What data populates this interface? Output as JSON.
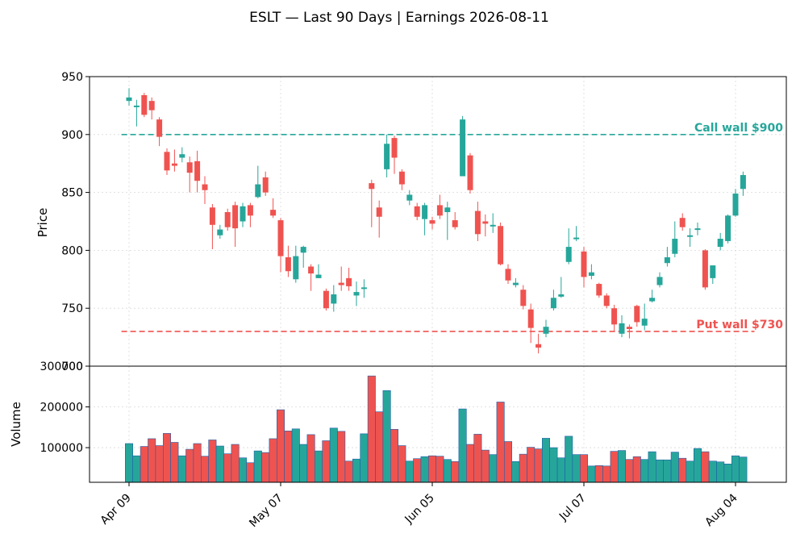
{
  "title": "ESLT — Last 90 Days | Earnings 2026-08-11",
  "colors": {
    "up": "#26a69a",
    "down": "#ef5350",
    "call_wall": "#26a69a",
    "put_wall": "#ef5350",
    "grid": "#d9d9d9",
    "bar_edge": "#1f5fa8"
  },
  "chart_data": [
    {
      "type": "candlestick",
      "ylabel": "Price",
      "ylim": [
        700,
        950
      ],
      "yticks": [
        700,
        750,
        800,
        850,
        900,
        950
      ],
      "grid": true,
      "annotations": [
        {
          "label": "Call wall $900",
          "value": 900
        },
        {
          "label": "Put wall $730",
          "value": 730
        }
      ],
      "candles": [
        [
          929,
          932,
          940,
          925
        ],
        [
          925,
          925,
          930,
          907
        ],
        [
          934,
          917,
          936,
          915
        ],
        [
          929,
          921,
          932,
          913
        ],
        [
          913,
          898,
          915,
          890
        ],
        [
          885,
          869,
          888,
          865
        ],
        [
          875,
          873,
          887,
          868
        ],
        [
          880,
          883,
          889,
          876
        ],
        [
          876,
          867,
          881,
          850
        ],
        [
          877,
          860,
          886,
          850
        ],
        [
          857,
          852,
          864,
          840
        ],
        [
          837,
          822,
          840,
          801
        ],
        [
          813,
          818,
          822,
          810
        ],
        [
          833,
          820,
          836,
          817
        ],
        [
          839,
          819,
          842,
          803
        ],
        [
          825,
          838,
          841,
          820
        ],
        [
          839,
          830,
          841,
          820
        ],
        [
          846,
          857,
          873,
          845
        ],
        [
          863,
          850,
          868,
          847
        ],
        [
          835,
          830,
          845,
          828
        ],
        [
          826,
          795,
          828,
          781
        ],
        [
          794,
          782,
          804,
          777
        ],
        [
          775,
          795,
          804,
          772
        ],
        [
          798,
          803,
          804,
          785
        ],
        [
          786,
          780,
          788,
          765
        ],
        [
          776,
          779,
          788,
          776
        ],
        [
          765,
          750,
          767,
          748
        ],
        [
          754,
          762,
          770,
          747
        ],
        [
          772,
          770,
          786,
          765
        ],
        [
          776,
          769,
          785,
          765
        ],
        [
          761,
          764,
          773,
          752
        ],
        [
          768,
          768,
          775,
          759
        ],
        [
          858,
          853,
          861,
          820
        ],
        [
          837,
          829,
          843,
          811
        ],
        [
          870,
          892,
          900,
          863
        ],
        [
          897,
          880,
          899,
          866
        ],
        [
          868,
          857,
          870,
          852
        ],
        [
          843,
          848,
          852,
          839
        ],
        [
          838,
          829,
          841,
          826
        ],
        [
          827,
          839,
          841,
          813
        ],
        [
          826,
          823,
          829,
          818
        ],
        [
          839,
          830,
          848,
          827
        ],
        [
          833,
          837,
          842,
          809
        ],
        [
          826,
          820,
          833,
          818
        ],
        [
          864,
          913,
          916,
          864
        ],
        [
          882,
          852,
          884,
          849
        ],
        [
          834,
          814,
          842,
          808
        ],
        [
          825,
          823,
          831,
          812
        ],
        [
          822,
          822,
          832,
          815
        ],
        [
          821,
          788,
          824,
          787
        ],
        [
          784,
          774,
          788,
          771
        ],
        [
          770,
          772,
          776,
          768
        ],
        [
          766,
          752,
          770,
          749
        ],
        [
          749,
          733,
          754,
          720
        ],
        [
          719,
          716,
          728,
          711
        ],
        [
          728,
          734,
          740,
          725
        ],
        [
          750,
          759,
          766,
          748
        ],
        [
          760,
          762,
          777,
          759
        ],
        [
          790,
          803,
          819,
          788
        ],
        [
          810,
          811,
          821,
          808
        ],
        [
          799,
          777,
          803,
          768
        ],
        [
          778,
          781,
          788,
          775
        ],
        [
          771,
          761,
          772,
          759
        ],
        [
          761,
          752,
          763,
          750
        ],
        [
          750,
          736,
          753,
          730
        ],
        [
          728,
          737,
          744,
          725
        ],
        [
          734,
          732,
          736,
          724
        ],
        [
          752,
          738,
          753,
          734
        ],
        [
          735,
          741,
          754,
          731
        ],
        [
          756,
          759,
          766,
          755
        ],
        [
          770,
          777,
          781,
          768
        ],
        [
          789,
          794,
          803,
          786
        ],
        [
          797,
          810,
          825,
          794
        ],
        [
          828,
          820,
          832,
          817
        ],
        [
          813,
          813,
          819,
          803
        ],
        [
          819,
          819,
          824,
          813
        ],
        [
          800,
          768,
          801,
          766
        ],
        [
          776,
          787,
          787,
          771
        ],
        [
          803,
          810,
          815,
          800
        ],
        [
          808,
          830,
          831,
          806
        ],
        [
          830,
          849,
          853,
          829
        ],
        [
          853,
          865,
          868,
          847
        ]
      ]
    },
    {
      "type": "bar",
      "ylabel": "Volume",
      "ylim": [
        15000,
        300000
      ],
      "yticks": [
        100000,
        200000,
        300000
      ],
      "xtick_labels": [
        "Apr 09",
        "May 07",
        "Jun 05",
        "Jul 07",
        "Aug 04"
      ],
      "xtick_index": [
        0,
        20,
        40,
        60,
        80
      ],
      "grid": true,
      "volume": [
        110000,
        80000,
        103000,
        122000,
        105000,
        135000,
        113000,
        80000,
        96000,
        110000,
        79000,
        119000,
        104000,
        85000,
        108000,
        75000,
        63000,
        92000,
        88000,
        122000,
        193000,
        141000,
        146000,
        108000,
        132000,
        92000,
        117000,
        148000,
        140000,
        67000,
        72000,
        134000,
        276000,
        188000,
        240000,
        145000,
        105000,
        67000,
        73000,
        78000,
        80000,
        79000,
        71000,
        66000,
        195000,
        108000,
        133000,
        94000,
        83000,
        212000,
        115000,
        66000,
        84000,
        101000,
        97000,
        123000,
        100000,
        75000,
        128000,
        83000,
        83000,
        55000,
        56000,
        55000,
        91000,
        93000,
        71000,
        78000,
        71000,
        90000,
        70000,
        70000,
        89000,
        74000,
        67000,
        98000,
        90000,
        67000,
        65000,
        60000,
        80000,
        77000
      ]
    }
  ]
}
